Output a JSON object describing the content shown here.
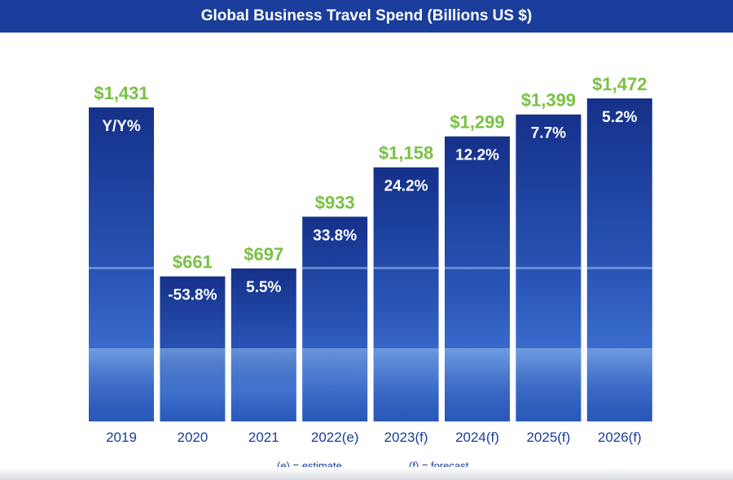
{
  "chart_data": {
    "type": "bar",
    "title": "Global Business Travel Spend (Billions US $)",
    "categories": [
      "2019",
      "2020",
      "2021",
      "2022(e)",
      "2023(f)",
      "2024(f)",
      "2025(f)",
      "2026(f)"
    ],
    "values": [
      1431,
      661,
      697,
      933,
      1158,
      1299,
      1399,
      1472
    ],
    "value_labels": [
      "$1,431",
      "$661",
      "$697",
      "$933",
      "$1,158",
      "$1,299",
      "$1,399",
      "$1,472"
    ],
    "yoy_labels": [
      "Y/Y%",
      "-53.8%",
      "5.5%",
      "33.8%",
      "24.2%",
      "12.2%",
      "7.7%",
      "5.2%"
    ],
    "ylim": [
      0,
      1472
    ],
    "grid": false,
    "legend": "none"
  },
  "footnotes": {
    "estimate": "(e) = estimate",
    "forecast": "(f) = forecast"
  },
  "colors": {
    "title_bar": "#1b3d9c",
    "value_label": "#7ac143",
    "bar_top": "#1a3a9a",
    "bar_bottom": "#2f5fc4",
    "category_label": "#1b3d9c",
    "yoy_label": "#ffffff"
  }
}
